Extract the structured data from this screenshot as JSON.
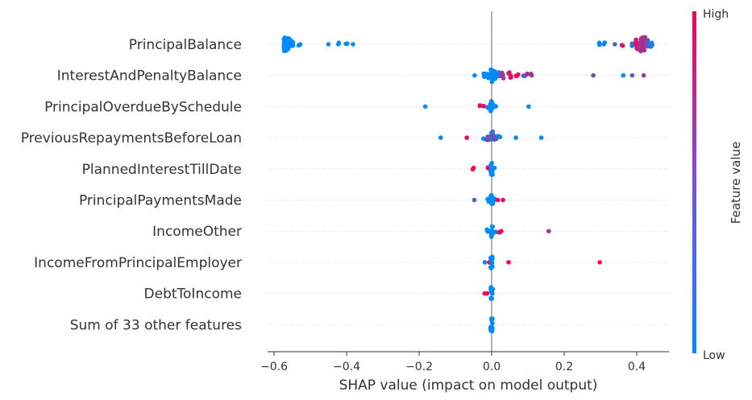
{
  "chart_data": {
    "type": "scatter",
    "subtype": "shap-beeswarm",
    "title": "",
    "xlabel": "SHAP value (impact on model output)",
    "ylabel": "",
    "xlim": [
      -0.62,
      0.48
    ],
    "xticks": [
      -0.6,
      -0.4,
      -0.2,
      0.0,
      0.2,
      0.4
    ],
    "xtick_labels": [
      "−0.6",
      "−0.4",
      "−0.2",
      "0.0",
      "0.2",
      "0.4"
    ],
    "grid": false,
    "colorbar": {
      "label": "Feature value",
      "high_label": "High",
      "low_label": "Low",
      "low_color": "#008bfb",
      "high_color": "#ff0052"
    },
    "features": [
      {
        "name": "PrincipalBalance",
        "points": [
          {
            "x": -0.57,
            "v": 0.0,
            "n": 40
          },
          {
            "x": -0.56,
            "v": 0.0,
            "n": 12
          },
          {
            "x": -0.55,
            "v": 0.0,
            "n": 6
          },
          {
            "x": -0.53,
            "v": 0.0,
            "n": 2
          },
          {
            "x": -0.45,
            "v": 0.0,
            "n": 1
          },
          {
            "x": -0.42,
            "v": 0.0,
            "n": 2
          },
          {
            "x": -0.4,
            "v": 0.0,
            "n": 2
          },
          {
            "x": -0.38,
            "v": 0.0,
            "n": 1
          },
          {
            "x": 0.3,
            "v": 0.0,
            "n": 3
          },
          {
            "x": 0.31,
            "v": 0.05,
            "n": 2
          },
          {
            "x": 0.34,
            "v": 0.3,
            "n": 1
          },
          {
            "x": 0.36,
            "v": 0.8,
            "n": 2
          },
          {
            "x": 0.39,
            "v": 0.2,
            "n": 3
          },
          {
            "x": 0.4,
            "v": 0.85,
            "n": 10
          },
          {
            "x": 0.41,
            "v": 0.6,
            "n": 14
          },
          {
            "x": 0.42,
            "v": 0.7,
            "n": 16
          },
          {
            "x": 0.43,
            "v": 0.35,
            "n": 8
          },
          {
            "x": 0.44,
            "v": 0.1,
            "n": 4
          }
        ]
      },
      {
        "name": "InterestAndPenaltyBalance",
        "points": [
          {
            "x": -0.05,
            "v": 0.0,
            "n": 1
          },
          {
            "x": -0.02,
            "v": 0.0,
            "n": 3
          },
          {
            "x": -0.01,
            "v": 0.0,
            "n": 5
          },
          {
            "x": 0.0,
            "v": 0.0,
            "n": 14
          },
          {
            "x": 0.01,
            "v": 0.0,
            "n": 8
          },
          {
            "x": 0.02,
            "v": 0.1,
            "n": 5
          },
          {
            "x": 0.03,
            "v": 0.55,
            "n": 5
          },
          {
            "x": 0.05,
            "v": 0.85,
            "n": 5
          },
          {
            "x": 0.07,
            "v": 0.95,
            "n": 3
          },
          {
            "x": 0.09,
            "v": 0.3,
            "n": 2
          },
          {
            "x": 0.1,
            "v": 0.75,
            "n": 2
          },
          {
            "x": 0.11,
            "v": 0.6,
            "n": 2
          },
          {
            "x": 0.28,
            "v": 0.35,
            "n": 1
          },
          {
            "x": 0.36,
            "v": 0.0,
            "n": 1
          },
          {
            "x": 0.39,
            "v": 0.35,
            "n": 1
          },
          {
            "x": 0.42,
            "v": 0.6,
            "n": 1
          }
        ]
      },
      {
        "name": "PrincipalOverdueBySchedule",
        "points": [
          {
            "x": -0.18,
            "v": 0.0,
            "n": 1
          },
          {
            "x": -0.03,
            "v": 0.9,
            "n": 2
          },
          {
            "x": -0.02,
            "v": 0.8,
            "n": 2
          },
          {
            "x": -0.01,
            "v": 0.1,
            "n": 3
          },
          {
            "x": 0.0,
            "v": 0.0,
            "n": 12
          },
          {
            "x": 0.01,
            "v": 0.0,
            "n": 4
          },
          {
            "x": 0.1,
            "v": 0.0,
            "n": 1
          }
        ]
      },
      {
        "name": "PreviousRepaymentsBeforeLoan",
        "points": [
          {
            "x": -0.14,
            "v": 0.0,
            "n": 1
          },
          {
            "x": -0.07,
            "v": 1.0,
            "n": 1
          },
          {
            "x": -0.02,
            "v": 0.0,
            "n": 2
          },
          {
            "x": -0.01,
            "v": 0.55,
            "n": 4
          },
          {
            "x": 0.0,
            "v": 0.2,
            "n": 12
          },
          {
            "x": 0.01,
            "v": 0.45,
            "n": 4
          },
          {
            "x": 0.02,
            "v": 0.0,
            "n": 2
          },
          {
            "x": 0.07,
            "v": 0.0,
            "n": 1
          },
          {
            "x": 0.14,
            "v": 0.0,
            "n": 1
          }
        ]
      },
      {
        "name": "PlannedInterestTillDate",
        "points": [
          {
            "x": -0.05,
            "v": 0.95,
            "n": 2
          },
          {
            "x": -0.01,
            "v": 0.9,
            "n": 2
          },
          {
            "x": 0.0,
            "v": 0.0,
            "n": 12
          },
          {
            "x": 0.005,
            "v": 0.0,
            "n": 4
          }
        ]
      },
      {
        "name": "PrincipalPaymentsMade",
        "points": [
          {
            "x": -0.05,
            "v": 0.3,
            "n": 1
          },
          {
            "x": -0.01,
            "v": 0.0,
            "n": 2
          },
          {
            "x": 0.0,
            "v": 0.0,
            "n": 12
          },
          {
            "x": 0.01,
            "v": 0.0,
            "n": 2
          },
          {
            "x": 0.02,
            "v": 1.0,
            "n": 1
          },
          {
            "x": 0.03,
            "v": 0.95,
            "n": 1
          }
        ]
      },
      {
        "name": "IncomeOther",
        "points": [
          {
            "x": -0.01,
            "v": 0.0,
            "n": 3
          },
          {
            "x": 0.0,
            "v": 0.0,
            "n": 12
          },
          {
            "x": 0.01,
            "v": 0.0,
            "n": 2
          },
          {
            "x": 0.02,
            "v": 0.95,
            "n": 2
          },
          {
            "x": 0.03,
            "v": 0.95,
            "n": 1
          },
          {
            "x": 0.16,
            "v": 0.6,
            "n": 1
          }
        ]
      },
      {
        "name": "IncomeFromPrincipalEmployer",
        "points": [
          {
            "x": -0.02,
            "v": 0.0,
            "n": 1
          },
          {
            "x": -0.01,
            "v": 0.95,
            "n": 1
          },
          {
            "x": 0.0,
            "v": 0.0,
            "n": 12
          },
          {
            "x": 0.05,
            "v": 1.0,
            "n": 1
          },
          {
            "x": 0.3,
            "v": 1.0,
            "n": 1
          }
        ]
      },
      {
        "name": "DebtToIncome",
        "points": [
          {
            "x": -0.02,
            "v": 1.0,
            "n": 1
          },
          {
            "x": -0.01,
            "v": 0.95,
            "n": 1
          },
          {
            "x": 0.0,
            "v": 0.0,
            "n": 12
          }
        ]
      },
      {
        "name": "Sum of 33 other features",
        "points": [
          {
            "x": 0.0,
            "v": 0.0,
            "n": 14
          }
        ]
      }
    ]
  }
}
